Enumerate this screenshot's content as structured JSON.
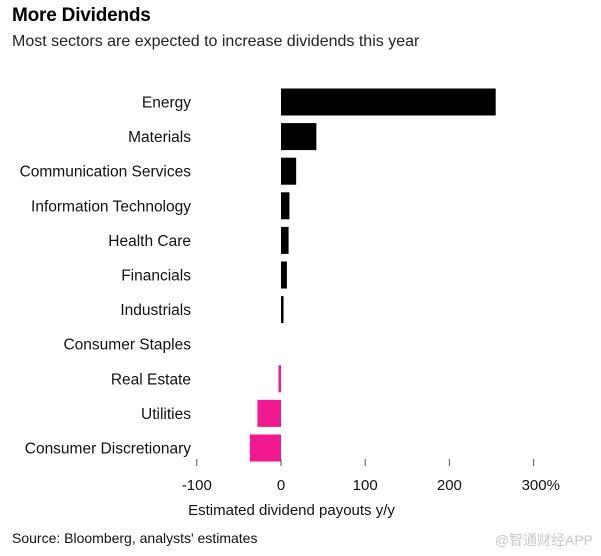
{
  "title": "More Dividends",
  "subtitle": "Most sectors are expected to increase dividends this year",
  "source": "Source: Bloomberg, analysts' estimates",
  "watermark": "@智通财经APP",
  "colors": {
    "positive": "#000000",
    "negative": "#f2188f",
    "axis": "#555555"
  },
  "chart_data": {
    "type": "bar",
    "orientation": "horizontal",
    "categories": [
      "Energy",
      "Materials",
      "Communication Services",
      "Information Technology",
      "Health Care",
      "Financials",
      "Industrials",
      "Consumer Staples",
      "Real Estate",
      "Utilities",
      "Consumer Discretionary"
    ],
    "values": [
      255,
      42,
      18,
      10,
      9,
      7,
      3,
      0,
      -3,
      -28,
      -37
    ],
    "xlabel": "Estimated dividend payouts y/y",
    "xlim": [
      -100,
      300
    ],
    "xticks": [
      -100,
      0,
      100,
      200,
      300
    ],
    "xtick_labels": [
      "-100",
      "0",
      "100",
      "200",
      "300%"
    ],
    "grid": false
  }
}
